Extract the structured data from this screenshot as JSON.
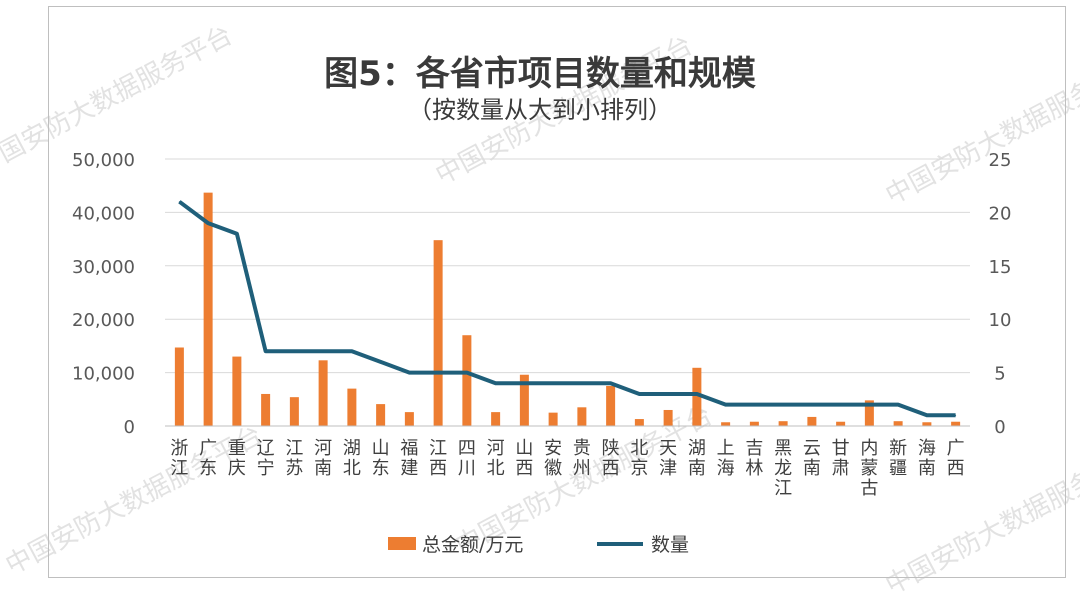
{
  "title": "图5：各省市项目数量和规模",
  "subtitle": "（按数量从大到小排列）",
  "watermark": "中国安防大数据服务平台",
  "colors": {
    "bar": "#ED7D31",
    "line": "#1F5F7A",
    "axis_text": "#595959",
    "grid": "#d9d9d9"
  },
  "legend": {
    "bar_label": "总金额/万元",
    "line_label": "数量"
  },
  "chart_data": {
    "type": "bar+line",
    "title": "图5：各省市项目数量和规模",
    "subtitle": "（按数量从大到小排列）",
    "categories": [
      "浙江",
      "广东",
      "重庆",
      "辽宁",
      "江苏",
      "河南",
      "湖北",
      "山东",
      "福建",
      "江西",
      "四川",
      "河北",
      "山西",
      "安徽",
      "贵州",
      "陕西",
      "北京",
      "天津",
      "湖南",
      "上海",
      "吉林",
      "黑龙江",
      "云南",
      "甘肃",
      "内蒙古",
      "新疆",
      "海南",
      "广西"
    ],
    "series": [
      {
        "name": "总金额/万元",
        "type": "bar",
        "axis": "left",
        "values": [
          14700,
          43700,
          13000,
          6000,
          5400,
          12300,
          7000,
          4100,
          2600,
          34800,
          17000,
          2600,
          9600,
          2500,
          3500,
          7500,
          1300,
          3000,
          10900,
          700,
          800,
          900,
          1700,
          800,
          4800,
          900,
          700,
          800
        ]
      },
      {
        "name": "数量",
        "type": "line",
        "axis": "right",
        "values": [
          21,
          19,
          18,
          7,
          7,
          7,
          7,
          6,
          5,
          5,
          5,
          4,
          4,
          4,
          4,
          4,
          3,
          3,
          3,
          2,
          2,
          2,
          2,
          2,
          2,
          2,
          1,
          1
        ]
      }
    ],
    "y_left": {
      "min": 0,
      "max": 50000,
      "ticks": [
        "0",
        "10,000",
        "20,000",
        "30,000",
        "40,000",
        "50,000"
      ]
    },
    "y_right": {
      "min": 0,
      "max": 25,
      "ticks": [
        "0",
        "5",
        "10",
        "15",
        "20",
        "25"
      ]
    },
    "grid": true,
    "legend_position": "bottom"
  }
}
